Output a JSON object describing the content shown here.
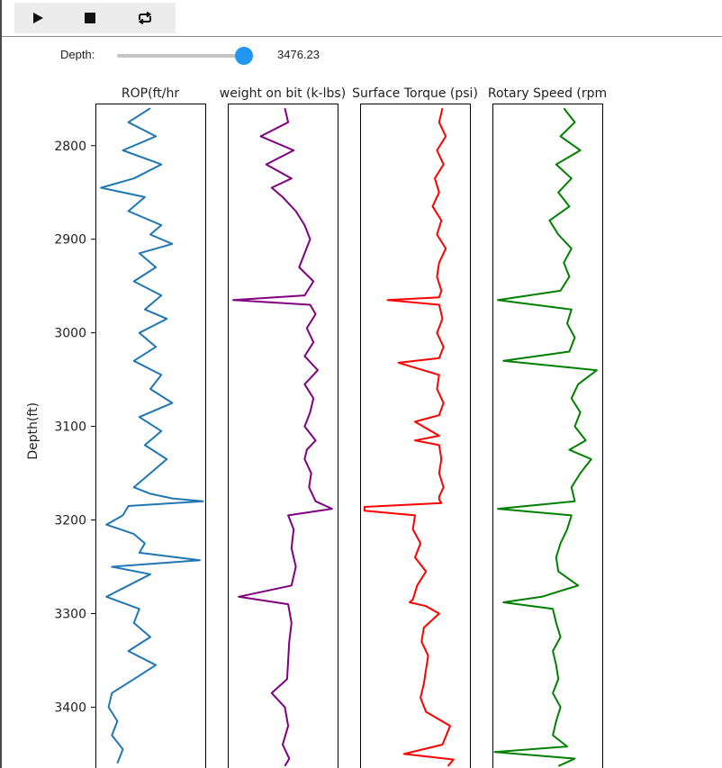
{
  "toolbar": {
    "play_icon": "play-icon",
    "stop_icon": "stop-icon",
    "loop_icon": "loop-icon"
  },
  "slider": {
    "label": "Depth:",
    "value_text": "3476.23",
    "value": 3476.23,
    "fill_fraction": 0.94,
    "accent_color": "#2196f3"
  },
  "chart_data": {
    "type": "line",
    "ylabel": "Depth(ft)",
    "ylim": [
      3465,
      2755
    ],
    "y_inverted": true,
    "yticks": [
      2800,
      2900,
      3000,
      3100,
      3200,
      3300,
      3400
    ],
    "panels": [
      {
        "title": "ROP(ft/hr",
        "color": "#1f77b4",
        "xlim": [
          0,
          100
        ],
        "depth": [
          2760,
          2775,
          2790,
          2805,
          2820,
          2835,
          2845,
          2855,
          2870,
          2885,
          2895,
          2905,
          2915,
          2930,
          2945,
          2960,
          2975,
          2985,
          3000,
          3015,
          3030,
          3045,
          3060,
          3075,
          3090,
          3105,
          3120,
          3135,
          3150,
          3165,
          3172,
          3177,
          3180,
          3185,
          3195,
          3205,
          3215,
          3225,
          3235,
          3243,
          3250,
          3258,
          3270,
          3282,
          3295,
          3310,
          3325,
          3340,
          3355,
          3370,
          3385,
          3400,
          3415,
          3430,
          3445,
          3460
        ],
        "values": [
          50,
          30,
          55,
          25,
          60,
          35,
          5,
          45,
          30,
          60,
          50,
          70,
          40,
          55,
          35,
          60,
          45,
          65,
          40,
          55,
          35,
          60,
          50,
          70,
          40,
          60,
          45,
          65,
          50,
          35,
          50,
          70,
          98,
          30,
          25,
          10,
          35,
          45,
          40,
          95,
          15,
          50,
          30,
          10,
          40,
          35,
          50,
          30,
          55,
          35,
          15,
          12,
          20,
          15,
          25,
          20
        ]
      },
      {
        "title": "weight on bit (k-lbs)",
        "color": "#800080",
        "xlim": [
          0,
          100
        ],
        "depth": [
          2760,
          2775,
          2790,
          2805,
          2820,
          2835,
          2845,
          2855,
          2870,
          2885,
          2900,
          2915,
          2930,
          2945,
          2960,
          2965,
          2970,
          2980,
          2995,
          3010,
          3025,
          3040,
          3055,
          3070,
          3085,
          3100,
          3115,
          3125,
          3135,
          3150,
          3165,
          3180,
          3188,
          3195,
          3210,
          3230,
          3250,
          3270,
          3282,
          3290,
          3310,
          3330,
          3350,
          3370,
          3385,
          3400,
          3420,
          3440,
          3455,
          3463
        ],
        "values": [
          52,
          55,
          30,
          60,
          35,
          58,
          40,
          50,
          62,
          70,
          75,
          70,
          65,
          78,
          70,
          5,
          75,
          80,
          72,
          78,
          70,
          82,
          70,
          78,
          75,
          70,
          80,
          72,
          70,
          76,
          74,
          80,
          95,
          55,
          60,
          58,
          62,
          58,
          10,
          55,
          58,
          56,
          55,
          54,
          40,
          52,
          55,
          50,
          56,
          52
        ]
      },
      {
        "title": "Surface Torque (psi)",
        "color": "#ff0000",
        "xlim": [
          0,
          100
        ],
        "depth": [
          2760,
          2775,
          2790,
          2805,
          2820,
          2835,
          2850,
          2865,
          2880,
          2895,
          2910,
          2925,
          2940,
          2955,
          2962,
          2965,
          2970,
          2985,
          3000,
          3015,
          3027,
          3032,
          3045,
          3060,
          3075,
          3088,
          3095,
          3110,
          3115,
          3120,
          3135,
          3150,
          3165,
          3175,
          3178,
          3182,
          3186,
          3190,
          3195,
          3210,
          3225,
          3240,
          3255,
          3270,
          3285,
          3288,
          3292,
          3300,
          3315,
          3330,
          3345,
          3360,
          3375,
          3390,
          3405,
          3420,
          3440,
          3450,
          3456,
          3463
        ],
        "values": [
          75,
          72,
          78,
          70,
          76,
          68,
          72,
          66,
          74,
          70,
          78,
          72,
          70,
          74,
          72,
          25,
          72,
          75,
          70,
          76,
          72,
          35,
          72,
          70,
          76,
          72,
          50,
          72,
          50,
          72,
          74,
          72,
          76,
          72,
          72,
          74,
          4,
          4,
          50,
          48,
          55,
          50,
          60,
          52,
          48,
          45,
          60,
          72,
          58,
          56,
          62,
          60,
          58,
          55,
          60,
          82,
          75,
          40,
          85,
          80
        ]
      },
      {
        "title": "Rotary Speed (rpm",
        "color": "#008000",
        "xlim": [
          0,
          100
        ],
        "depth": [
          2760,
          2775,
          2790,
          2805,
          2820,
          2835,
          2850,
          2865,
          2880,
          2895,
          2910,
          2925,
          2940,
          2955,
          2965,
          2975,
          2990,
          3005,
          3020,
          3030,
          3040,
          3055,
          3070,
          3085,
          3100,
          3115,
          3125,
          3135,
          3150,
          3165,
          3180,
          3188,
          3195,
          3210,
          3225,
          3240,
          3255,
          3270,
          3282,
          3288,
          3295,
          3310,
          3325,
          3340,
          3355,
          3370,
          3385,
          3400,
          3415,
          3430,
          3442,
          3448,
          3455,
          3463
        ],
        "values": [
          65,
          75,
          62,
          80,
          58,
          72,
          60,
          70,
          52,
          60,
          72,
          65,
          70,
          62,
          5,
          72,
          68,
          75,
          70,
          10,
          95,
          78,
          72,
          80,
          75,
          85,
          70,
          90,
          80,
          72,
          75,
          5,
          72,
          68,
          62,
          58,
          60,
          78,
          45,
          10,
          55,
          58,
          62,
          55,
          58,
          60,
          55,
          62,
          58,
          55,
          68,
          2,
          75,
          60
        ]
      }
    ]
  }
}
